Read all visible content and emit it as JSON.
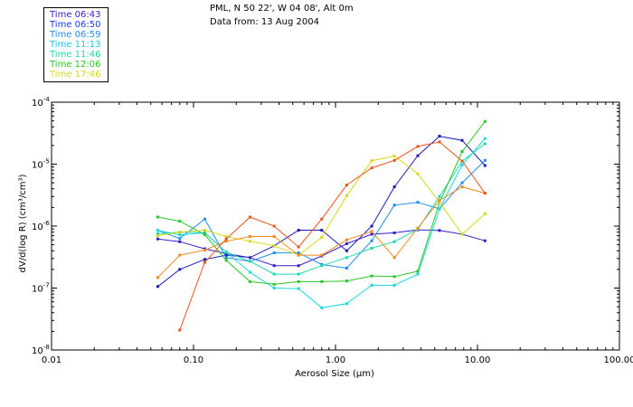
{
  "header": {
    "location": "PML, N 50 22', W 04 08', Alt 0m",
    "date_line": "Data from: 13 Aug 2004"
  },
  "legend": [
    {
      "label": "Time 06:43",
      "color": "#3a1ec8"
    },
    {
      "label": "Time 06:50",
      "color": "#1a3ce0"
    },
    {
      "label": "Time 06:59",
      "color": "#1f8ef2"
    },
    {
      "label": "Time 11:13",
      "color": "#18c8e0"
    },
    {
      "label": "Time 11:46",
      "color": "#1fd8a8"
    },
    {
      "label": "Time 12:06",
      "color": "#28c828"
    },
    {
      "label": "Time 17:46",
      "color": "#d8d818"
    }
  ],
  "chart_data": {
    "type": "line",
    "x_scale": "log",
    "y_scale": "log",
    "xlim": [
      0.01,
      100
    ],
    "ylim": [
      1e-08,
      0.0001
    ],
    "xlabel": "Aerosol Size (µm)",
    "ylabel": "dV/d(log R) (cm³/cm³)",
    "x_ticks": [
      {
        "value": 0.01,
        "label": "0.01"
      },
      {
        "value": 0.1,
        "label": "0.10"
      },
      {
        "value": 1,
        "label": "1.00"
      },
      {
        "value": 10,
        "label": "10.00"
      },
      {
        "value": 100,
        "label": "100.00"
      }
    ],
    "y_ticks": [
      {
        "value": 0.0001,
        "base": "10",
        "exp": "-4"
      },
      {
        "value": 1e-05,
        "base": "10",
        "exp": "-5"
      },
      {
        "value": 1e-06,
        "base": "10",
        "exp": "-6"
      },
      {
        "value": 1e-07,
        "base": "10",
        "exp": "-7"
      },
      {
        "value": 1e-08,
        "base": "10",
        "exp": "-8"
      }
    ],
    "series": [
      {
        "name": "dark-blue",
        "color": "#1a1ab0",
        "x": [
          0.056,
          0.08,
          0.12,
          0.17,
          0.25,
          0.37,
          0.55,
          0.8,
          1.2,
          1.8,
          2.6,
          3.8,
          5.4,
          7.8,
          11.3
        ],
        "y": [
          1.06e-07,
          2e-07,
          2.9e-07,
          3.4e-07,
          3.1e-07,
          4.8e-07,
          8.6e-07,
          8.6e-07,
          4e-07,
          1e-06,
          4.3e-06,
          1.37e-05,
          2.83e-05,
          2.42e-05,
          9.5e-06
        ]
      },
      {
        "name": "indigo",
        "color": "#3a1ec8",
        "x": [
          0.056,
          0.08,
          0.12,
          0.17,
          0.25,
          0.37,
          0.55,
          0.8,
          1.2,
          1.8,
          2.6,
          3.8,
          5.4,
          7.8,
          11.3
        ],
        "y": [
          6.2e-07,
          5.6e-07,
          4.3e-07,
          3.6e-07,
          3.1e-07,
          2.3e-07,
          2.3e-07,
          3.3e-07,
          5.2e-07,
          7.4e-07,
          7.8e-07,
          8.7e-07,
          8.5e-07,
          7.4e-07,
          5.8e-07
        ]
      },
      {
        "name": "royal-blue",
        "color": "#1f8ef2",
        "x": [
          0.056,
          0.08,
          0.12,
          0.17,
          0.25,
          0.37,
          0.55,
          0.8,
          1.2,
          1.8,
          2.6,
          3.8,
          5.4,
          7.8,
          11.3
        ],
        "y": [
          8.5e-07,
          6.3e-07,
          1.3e-06,
          3.1e-07,
          2.7e-07,
          3.7e-07,
          3.7e-07,
          2.4e-07,
          2.1e-07,
          5.8e-07,
          2.18e-06,
          2.42e-06,
          1.9e-06,
          5e-06,
          1.15e-05
        ]
      },
      {
        "name": "cyan",
        "color": "#18d8e0",
        "x": [
          0.056,
          0.08,
          0.12,
          0.17,
          0.25,
          0.37,
          0.55,
          0.8,
          1.2,
          1.8,
          2.6,
          3.8,
          5.4,
          7.8,
          11.3
        ],
        "y": [
          8.5e-07,
          7.2e-07,
          7.8e-07,
          3.8e-07,
          1.8e-07,
          1e-07,
          9.8e-08,
          4.8e-08,
          5.6e-08,
          1.11e-07,
          1.11e-07,
          1.68e-07,
          1.9e-06,
          9.7e-06,
          2.59e-05
        ]
      },
      {
        "name": "aqua",
        "color": "#1fd8b0",
        "x": [
          0.056,
          0.08,
          0.12,
          0.17,
          0.25,
          0.37,
          0.55,
          0.8,
          1.2,
          1.8,
          2.6,
          3.8,
          5.4,
          7.8,
          11.3
        ],
        "y": [
          7.5e-07,
          8e-07,
          7.8e-07,
          3.8e-07,
          2.7e-07,
          1.68e-07,
          1.68e-07,
          2.3e-07,
          3.1e-07,
          4.4e-07,
          5.6e-07,
          8.9e-07,
          3e-06,
          1.12e-05,
          2.13e-05
        ]
      },
      {
        "name": "green",
        "color": "#28c828",
        "x": [
          0.056,
          0.08,
          0.12,
          0.17,
          0.25,
          0.37,
          0.55,
          0.8,
          1.2,
          1.8,
          2.6,
          3.8,
          5.4,
          7.8,
          11.3
        ],
        "y": [
          1.4e-06,
          1.2e-06,
          7.3e-07,
          2.8e-07,
          1.27e-07,
          1.15e-07,
          1.27e-07,
          1.27e-07,
          1.3e-07,
          1.57e-07,
          1.53e-07,
          1.87e-07,
          2.4e-06,
          1.6e-05,
          4.9e-05
        ]
      },
      {
        "name": "yellow",
        "color": "#d8d818",
        "x": [
          0.056,
          0.08,
          0.12,
          0.17,
          0.25,
          0.37,
          0.55,
          0.8,
          1.2,
          1.8,
          2.6,
          3.8,
          5.4,
          7.8,
          11.3
        ],
        "y": [
          7e-07,
          8e-07,
          8.6e-07,
          6.8e-07,
          5.7e-07,
          4.8e-07,
          3.4e-07,
          6.6e-07,
          3.1e-06,
          1.14e-05,
          1.35e-05,
          7e-06,
          2.42e-06,
          7.4e-07,
          1.57e-06
        ]
      },
      {
        "name": "orange",
        "color": "#f08c1e",
        "x": [
          0.056,
          0.08,
          0.12,
          0.17,
          0.25,
          0.37,
          0.55,
          0.8,
          1.2,
          1.8,
          2.6,
          3.8,
          5.4,
          7.8,
          11.3
        ],
        "y": [
          1.48e-07,
          3.4e-07,
          4.1e-07,
          5.7e-07,
          6.8e-07,
          6.8e-07,
          3.4e-07,
          3.4e-07,
          6e-07,
          8.2e-07,
          3.1e-07,
          9.3e-07,
          2.6e-06,
          4.3e-06,
          3.4e-06
        ]
      },
      {
        "name": "orange-red",
        "color": "#e8541e",
        "x": [
          0.08,
          0.12,
          0.17,
          0.25,
          0.37,
          0.55,
          0.8,
          1.2,
          1.8,
          2.6,
          3.8,
          5.4,
          7.8,
          11.3
        ],
        "y": [
          2.1e-08,
          2.6e-07,
          6.2e-07,
          1.4e-06,
          1e-06,
          4.6e-07,
          1.3e-06,
          4.6e-06,
          8.7e-06,
          1.15e-05,
          1.93e-05,
          2.29e-05,
          1.12e-05,
          3.4e-06
        ]
      }
    ]
  }
}
